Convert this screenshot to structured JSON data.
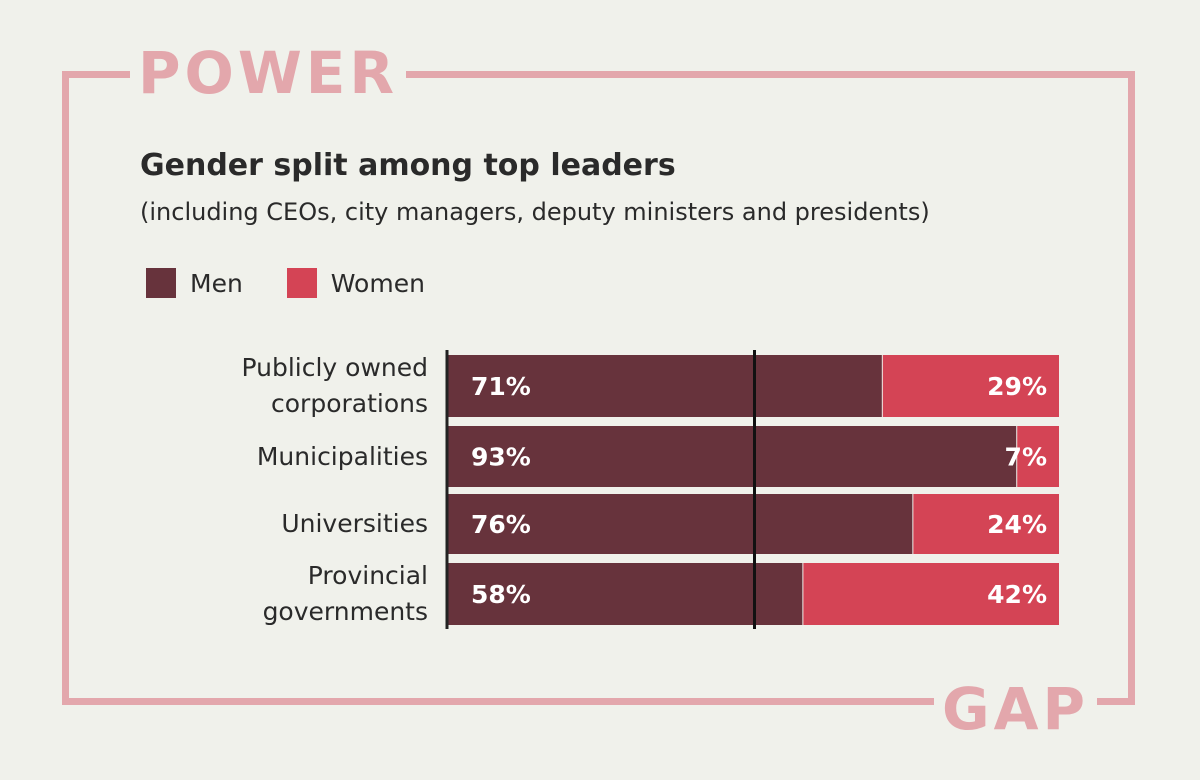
{
  "decor": {
    "top_word": "POWER",
    "bottom_word": "GAP"
  },
  "colors": {
    "men": "#67333c",
    "women": "#d44455",
    "frame": "#e3a7ac",
    "background": "#f0f1eb"
  },
  "chart_data": {
    "type": "bar",
    "orientation": "horizontal",
    "stacked": true,
    "title": "Gender split among top leaders",
    "subtitle": "(including CEOs, city managers, deputy ministers and presidents)",
    "categories": [
      [
        "Publicly owned",
        "corporations"
      ],
      [
        "Municipalities"
      ],
      [
        "Universities"
      ],
      [
        "Provincial",
        "governments"
      ]
    ],
    "series": [
      {
        "name": "Men",
        "values": [
          71,
          93,
          76,
          58
        ],
        "labels": [
          "71%",
          "93%",
          "76%",
          "58%"
        ]
      },
      {
        "name": "Women",
        "values": [
          29,
          7,
          24,
          42
        ],
        "labels": [
          "29%",
          "7%",
          "24%",
          "42%"
        ]
      }
    ],
    "xlim": [
      0,
      100
    ],
    "reference_line": 50,
    "legend_position": "top-left"
  }
}
